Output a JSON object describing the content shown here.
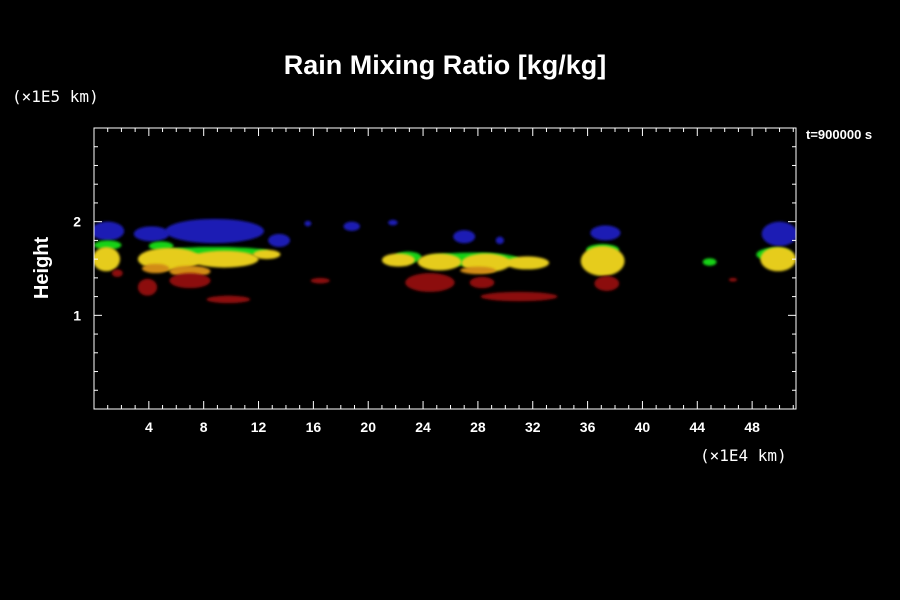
{
  "chart_data": {
    "type": "heatmap",
    "title": "Rain Mixing Ratio [kg/kg]",
    "ylabel": "Height",
    "x_unit": "(×1E4 km)",
    "y_unit": "(×1E5 km)",
    "time_label": "t=900000 s",
    "x_ticks": [
      "4",
      "8",
      "12",
      "16",
      "20",
      "24",
      "28",
      "32",
      "36",
      "40",
      "44",
      "48"
    ],
    "x_tick_values": [
      4,
      8,
      12,
      16,
      20,
      24,
      28,
      32,
      36,
      40,
      44,
      48
    ],
    "y_ticks": [
      "1",
      "2"
    ],
    "y_tick_values": [
      1,
      2
    ],
    "xlim": [
      0,
      51.2
    ],
    "ylim": [
      0,
      3.0
    ],
    "background": "#000000",
    "colors": {
      "blue": "#1a1ab4",
      "green": "#19d219",
      "yellow": "#e6cc1e",
      "orange": "#d28c14",
      "red": "#8c0e0e"
    },
    "regions": [
      {
        "color": "blue",
        "cx": 1.0,
        "cy": 1.9,
        "rx": 1.2,
        "ry": 0.1
      },
      {
        "color": "blue",
        "cx": 4.2,
        "cy": 1.87,
        "rx": 1.3,
        "ry": 0.08
      },
      {
        "color": "blue",
        "cx": 8.8,
        "cy": 1.9,
        "rx": 3.6,
        "ry": 0.13
      },
      {
        "color": "blue",
        "cx": 13.5,
        "cy": 1.8,
        "rx": 0.8,
        "ry": 0.07
      },
      {
        "color": "blue",
        "cx": 15.6,
        "cy": 1.98,
        "rx": 0.25,
        "ry": 0.03
      },
      {
        "color": "blue",
        "cx": 18.8,
        "cy": 1.95,
        "rx": 0.6,
        "ry": 0.05
      },
      {
        "color": "blue",
        "cx": 21.8,
        "cy": 1.99,
        "rx": 0.35,
        "ry": 0.03
      },
      {
        "color": "blue",
        "cx": 27.0,
        "cy": 1.84,
        "rx": 0.8,
        "ry": 0.07
      },
      {
        "color": "blue",
        "cx": 29.6,
        "cy": 1.8,
        "rx": 0.3,
        "ry": 0.04
      },
      {
        "color": "blue",
        "cx": 37.3,
        "cy": 1.88,
        "rx": 1.1,
        "ry": 0.08
      },
      {
        "color": "blue",
        "cx": 50.0,
        "cy": 1.87,
        "rx": 1.3,
        "ry": 0.13
      },
      {
        "color": "green",
        "cx": 1.0,
        "cy": 1.75,
        "rx": 1.0,
        "ry": 0.05
      },
      {
        "color": "green",
        "cx": 4.9,
        "cy": 1.74,
        "rx": 0.9,
        "ry": 0.05
      },
      {
        "color": "green",
        "cx": 8.8,
        "cy": 1.68,
        "rx": 4.0,
        "ry": 0.05
      },
      {
        "color": "green",
        "cx": 22.9,
        "cy": 1.62,
        "rx": 1.0,
        "ry": 0.06
      },
      {
        "color": "green",
        "cx": 27.6,
        "cy": 1.6,
        "rx": 3.4,
        "ry": 0.07
      },
      {
        "color": "green",
        "cx": 37.1,
        "cy": 1.7,
        "rx": 1.2,
        "ry": 0.06
      },
      {
        "color": "green",
        "cx": 44.9,
        "cy": 1.57,
        "rx": 0.5,
        "ry": 0.04
      },
      {
        "color": "green",
        "cx": 49.6,
        "cy": 1.65,
        "rx": 1.3,
        "ry": 0.07
      },
      {
        "color": "yellow",
        "cx": 0.9,
        "cy": 1.6,
        "rx": 1.0,
        "ry": 0.13
      },
      {
        "color": "yellow",
        "cx": 5.5,
        "cy": 1.6,
        "rx": 2.3,
        "ry": 0.12
      },
      {
        "color": "yellow",
        "cx": 9.5,
        "cy": 1.6,
        "rx": 2.5,
        "ry": 0.09
      },
      {
        "color": "yellow",
        "cx": 12.6,
        "cy": 1.65,
        "rx": 1.0,
        "ry": 0.05
      },
      {
        "color": "yellow",
        "cx": 22.2,
        "cy": 1.59,
        "rx": 1.2,
        "ry": 0.07
      },
      {
        "color": "yellow",
        "cx": 25.2,
        "cy": 1.57,
        "rx": 1.6,
        "ry": 0.09
      },
      {
        "color": "yellow",
        "cx": 28.6,
        "cy": 1.56,
        "rx": 1.8,
        "ry": 0.1
      },
      {
        "color": "yellow",
        "cx": 31.6,
        "cy": 1.56,
        "rx": 1.6,
        "ry": 0.07
      },
      {
        "color": "yellow",
        "cx": 37.1,
        "cy": 1.58,
        "rx": 1.6,
        "ry": 0.16
      },
      {
        "color": "yellow",
        "cx": 49.9,
        "cy": 1.6,
        "rx": 1.3,
        "ry": 0.13
      },
      {
        "color": "orange",
        "cx": 4.5,
        "cy": 1.5,
        "rx": 1.0,
        "ry": 0.05
      },
      {
        "color": "orange",
        "cx": 7.0,
        "cy": 1.47,
        "rx": 1.5,
        "ry": 0.06
      },
      {
        "color": "orange",
        "cx": 28.0,
        "cy": 1.48,
        "rx": 1.3,
        "ry": 0.04
      },
      {
        "color": "red",
        "cx": 1.7,
        "cy": 1.45,
        "rx": 0.4,
        "ry": 0.04
      },
      {
        "color": "red",
        "cx": 3.9,
        "cy": 1.3,
        "rx": 0.7,
        "ry": 0.09
      },
      {
        "color": "red",
        "cx": 7.0,
        "cy": 1.37,
        "rx": 1.5,
        "ry": 0.08
      },
      {
        "color": "red",
        "cx": 9.8,
        "cy": 1.17,
        "rx": 1.6,
        "ry": 0.04
      },
      {
        "color": "red",
        "cx": 16.5,
        "cy": 1.37,
        "rx": 0.7,
        "ry": 0.03
      },
      {
        "color": "red",
        "cx": 24.5,
        "cy": 1.35,
        "rx": 1.8,
        "ry": 0.1
      },
      {
        "color": "red",
        "cx": 28.3,
        "cy": 1.35,
        "rx": 0.9,
        "ry": 0.06
      },
      {
        "color": "red",
        "cx": 31.0,
        "cy": 1.2,
        "rx": 2.8,
        "ry": 0.05
      },
      {
        "color": "red",
        "cx": 37.4,
        "cy": 1.34,
        "rx": 0.9,
        "ry": 0.08
      },
      {
        "color": "red",
        "cx": 46.6,
        "cy": 1.38,
        "rx": 0.3,
        "ry": 0.02
      }
    ]
  }
}
